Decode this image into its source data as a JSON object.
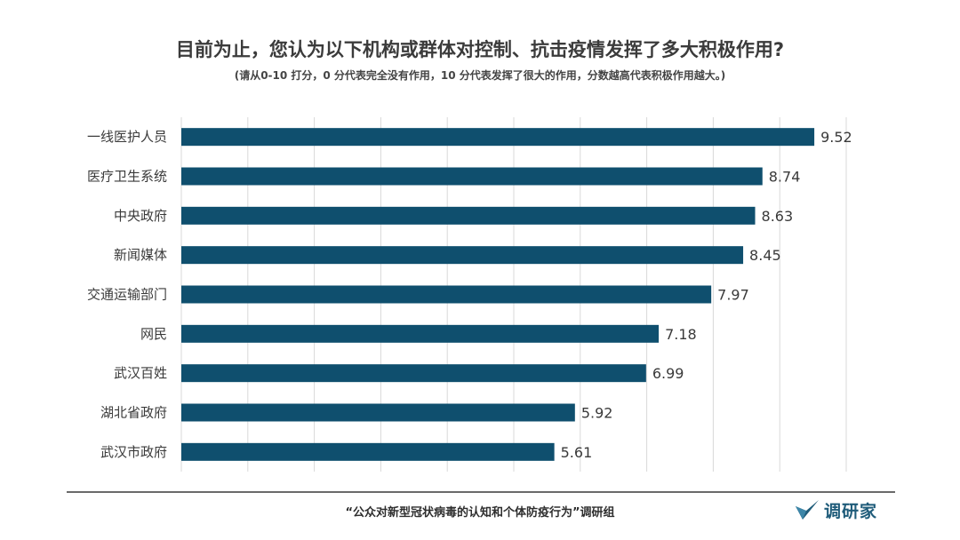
{
  "chart_data": {
    "type": "bar",
    "orientation": "horizontal",
    "title": "目前为止，您认为以下机构或群体对控制、抗击疫情发挥了多大积极作用?",
    "subtitle": "(请从0-10 打分，0 分代表完全没有作用，10 分代表发挥了很大的作用，分数越高代表积极作用越大。)",
    "categories": [
      "一线医护人员",
      "医疗卫生系统",
      "中央政府",
      "新闻媒体",
      "交通运输部门",
      "网民",
      "武汉百姓",
      "湖北省政府",
      "武汉市政府"
    ],
    "values": [
      9.52,
      8.74,
      8.63,
      8.45,
      7.97,
      7.18,
      6.99,
      5.92,
      5.61
    ],
    "value_labels": [
      "9.52",
      "8.74",
      "8.63",
      "8.45",
      "7.97",
      "7.18",
      "6.99",
      "5.92",
      "5.61"
    ],
    "xlim": [
      0,
      10
    ],
    "grid": true,
    "bar_color": "#0f4f6e"
  },
  "footer": {
    "source": "“公众对新型冠状病毒的认知和个体防疫行为”调研组",
    "logo_text": "调研家",
    "logo_icon": "checkmark-leaf-icon"
  }
}
